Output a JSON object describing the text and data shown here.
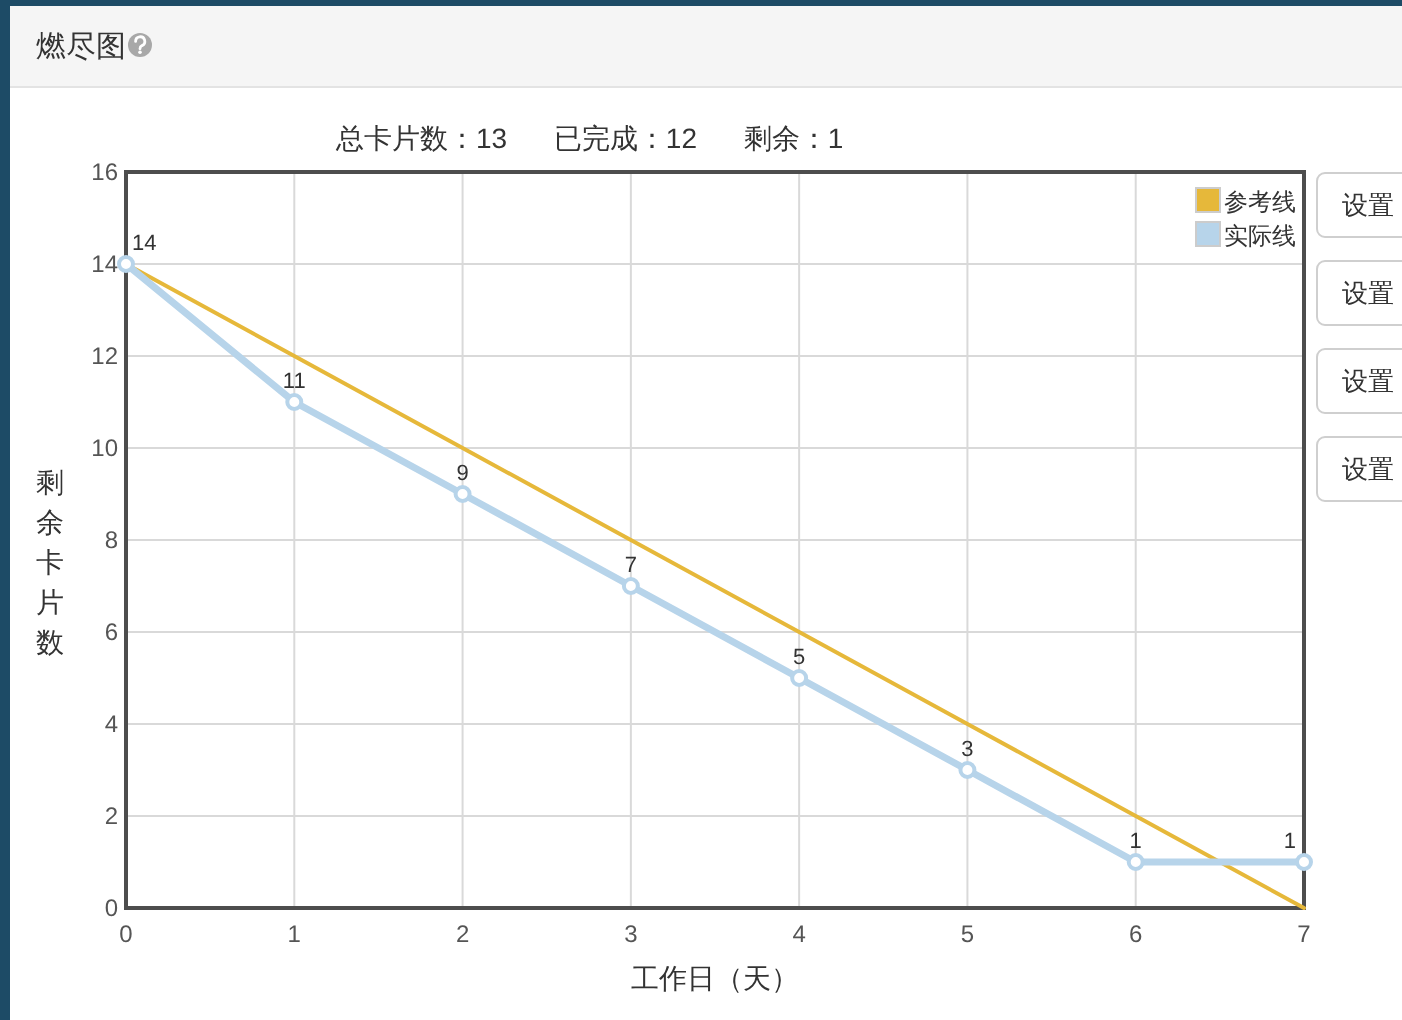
{
  "chart_data": {
    "type": "line",
    "title": "燃尽图",
    "subtitle": "总卡片数：13      已完成：12      剩余：1",
    "xlabel": "工作日（天）",
    "ylabel": "剩余卡片数",
    "x": [
      0,
      1,
      2,
      3,
      4,
      5,
      6,
      7
    ],
    "xlim": [
      0,
      7
    ],
    "xticks": [
      0,
      1,
      2,
      3,
      4,
      5,
      6,
      7
    ],
    "ylim": [
      0,
      16
    ],
    "yticks": [
      0,
      2,
      4,
      6,
      8,
      10,
      12,
      14,
      16
    ],
    "grid": true,
    "legend": "top right",
    "series": [
      {
        "name": "参考线",
        "color": "#e6b83a",
        "values": [
          14,
          12,
          10,
          8,
          6,
          4,
          2,
          0
        ],
        "marker": "none"
      },
      {
        "name": "实际线",
        "color": "#b7d4ea",
        "values": [
          14,
          11,
          9,
          7,
          5,
          3,
          1,
          1
        ],
        "marker": "circle",
        "value_labels": [
          "14",
          "11",
          "9",
          "7",
          "5",
          "3",
          "1",
          "1"
        ]
      }
    ],
    "annotations": [
      "设置",
      "设置",
      "设置",
      "设置"
    ]
  }
}
